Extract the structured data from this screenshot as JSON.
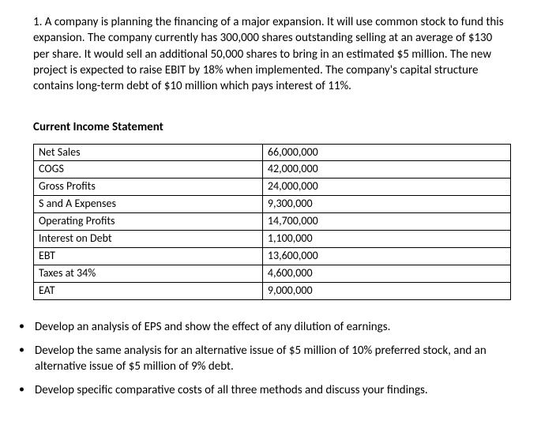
{
  "question": {
    "number": "1.",
    "text": "A company is planning the financing of a major expansion.  It will use common stock to fund this expansion.  The company currently has 300,000 shares outstanding selling at an average of $130 per share.  It would sell an additional 50,000 shares to bring in an estimated $5 million.  The new project is expected to raise EBIT by 18% when implemented.  The company's capital structure contains long-term debt of $10 million which pays interest of 11%."
  },
  "table": {
    "heading": "Current Income Statement",
    "rows": [
      {
        "label": "Net Sales",
        "value": "66,000,000"
      },
      {
        "label": "COGS",
        "value": "42,000,000"
      },
      {
        "label": "Gross Profits",
        "value": "24,000,000"
      },
      {
        "label": "S and A Expenses",
        "value": "9,300,000"
      },
      {
        "label": "Operating Profits",
        "value": "14,700,000"
      },
      {
        "label": "Interest on Debt",
        "value": "1,100,000"
      },
      {
        "label": "EBT",
        "value": "13,600,000"
      },
      {
        "label": "Taxes at 34%",
        "value": "4,600,000"
      },
      {
        "label": "EAT",
        "value": "9,000,000"
      }
    ]
  },
  "tasks": [
    "Develop an analysis of EPS and show the effect of any dilution of earnings.",
    "Develop the same analysis for an alternative issue of $5 million of 10% preferred stock, and an alternative issue of $5 million of 9% debt.",
    "Develop specific comparative costs of all three methods and discuss your findings."
  ]
}
